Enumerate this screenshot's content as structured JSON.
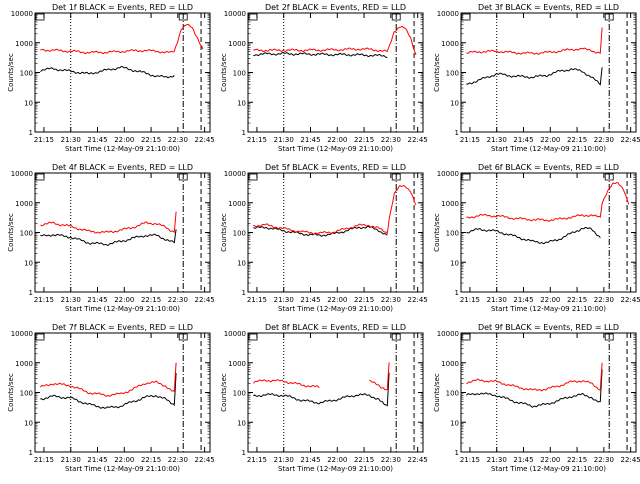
{
  "xlabel": "Start Time (12-May-09 21:10:00)",
  "ylabel": "Counts/sec",
  "x_ticks": [
    "21:15",
    "21:30",
    "21:45",
    "22:00",
    "22:15",
    "22:30",
    "22:45"
  ],
  "x_tick_values_min": [
    5,
    20,
    35,
    50,
    65,
    80,
    95
  ],
  "xlim_min": [
    0,
    98
  ],
  "y_ticks": [
    "1",
    "10",
    "100",
    "1000",
    "10000"
  ],
  "ylim": [
    1,
    10000
  ],
  "y_scale": "log",
  "colors": {
    "events": "#000000",
    "lld": "#ff0000",
    "frame": "#000000"
  },
  "vlines_min": {
    "dotted": 20,
    "dashdot": 83,
    "dashed": 93
  },
  "chart_data": [
    {
      "type": "line",
      "title": "Det 1f BLACK = Events, RED = LLD",
      "lld_gap": [],
      "x": [
        3,
        10,
        20,
        30,
        40,
        48,
        55,
        62,
        68,
        73,
        76,
        78,
        79,
        82,
        85,
        88,
        91,
        94
      ],
      "series": [
        {
          "name": "Events",
          "values": [
            120,
            135,
            110,
            90,
            120,
            150,
            120,
            95,
            75,
            70,
            75,
            80,
            null,
            null,
            null,
            null,
            null,
            null
          ]
        },
        {
          "name": "LLD",
          "values": [
            580,
            560,
            520,
            470,
            480,
            510,
            540,
            550,
            520,
            480,
            460,
            520,
            800,
            3000,
            4000,
            3200,
            1500,
            600
          ]
        }
      ]
    },
    {
      "type": "line",
      "title": "Det 2f BLACK = Events, RED = LLD",
      "lld_gap": [],
      "x": [
        3,
        10,
        20,
        30,
        40,
        48,
        55,
        62,
        68,
        73,
        76,
        78,
        79,
        82,
        85,
        88,
        91,
        94
      ],
      "series": [
        {
          "name": "Events",
          "values": [
            400,
            420,
            430,
            420,
            410,
            400,
            400,
            390,
            380,
            370,
            360,
            350,
            null,
            null,
            null,
            null,
            null,
            null
          ]
        },
        {
          "name": "LLD",
          "values": [
            560,
            560,
            560,
            560,
            570,
            580,
            600,
            620,
            600,
            560,
            520,
            500,
            700,
            2500,
            3500,
            3000,
            1500,
            400
          ]
        }
      ]
    },
    {
      "type": "line",
      "title": "Det 3f BLACK = Events, RED = LLD",
      "lld_gap": [],
      "x": [
        3,
        10,
        20,
        30,
        40,
        48,
        55,
        62,
        68,
        73,
        76,
        78,
        79,
        82,
        85,
        88,
        91,
        94
      ],
      "series": [
        {
          "name": "Events",
          "values": [
            40,
            55,
            90,
            75,
            70,
            80,
            110,
            130,
            110,
            70,
            50,
            40,
            150,
            null,
            null,
            null,
            null,
            null
          ]
        },
        {
          "name": "LLD",
          "values": [
            450,
            500,
            520,
            460,
            440,
            470,
            520,
            600,
            620,
            560,
            480,
            450,
            3000,
            null,
            null,
            null,
            null,
            null
          ]
        }
      ]
    },
    {
      "type": "line",
      "title": "Det 4f BLACK = Events, RED = LLD",
      "lld_gap": [],
      "x": [
        3,
        10,
        20,
        30,
        40,
        48,
        55,
        62,
        68,
        73,
        76,
        78,
        79,
        82,
        85,
        88,
        91,
        94
      ],
      "series": [
        {
          "name": "Events",
          "values": [
            75,
            85,
            70,
            45,
            40,
            50,
            65,
            80,
            80,
            60,
            50,
            45,
            120,
            null,
            null,
            null,
            null,
            null
          ]
        },
        {
          "name": "LLD",
          "values": [
            180,
            210,
            160,
            110,
            100,
            120,
            150,
            210,
            200,
            150,
            120,
            110,
            500,
            null,
            null,
            null,
            null,
            null
          ]
        }
      ]
    },
    {
      "type": "line",
      "title": "Det 5f BLACK = Events, RED = LLD",
      "lld_gap": [],
      "x": [
        3,
        10,
        20,
        30,
        40,
        48,
        55,
        62,
        68,
        73,
        76,
        78,
        79,
        82,
        85,
        88,
        91,
        94
      ],
      "series": [
        {
          "name": "Events",
          "values": [
            140,
            150,
            115,
            90,
            80,
            90,
            115,
            150,
            150,
            120,
            95,
            80,
            null,
            null,
            null,
            null,
            null,
            null
          ]
        },
        {
          "name": "LLD",
          "values": [
            170,
            180,
            135,
            105,
            95,
            105,
            135,
            175,
            175,
            140,
            110,
            100,
            300,
            2000,
            3500,
            3800,
            2500,
            800
          ]
        }
      ]
    },
    {
      "type": "line",
      "title": "Det 6f BLACK = Events, RED = LLD",
      "lld_gap": [],
      "x": [
        3,
        10,
        20,
        30,
        40,
        48,
        55,
        62,
        68,
        73,
        76,
        78,
        79,
        82,
        85,
        88,
        91,
        94
      ],
      "series": [
        {
          "name": "Events",
          "values": [
            100,
            130,
            110,
            75,
            50,
            45,
            60,
            95,
            140,
            130,
            90,
            70,
            null,
            null,
            null,
            null,
            null,
            null
          ]
        },
        {
          "name": "LLD",
          "values": [
            300,
            380,
            360,
            300,
            270,
            260,
            280,
            330,
            380,
            380,
            340,
            320,
            1000,
            2500,
            4200,
            4500,
            3000,
            900
          ]
        }
      ]
    },
    {
      "type": "line",
      "title": "Det 7f BLACK = Events, RED = LLD",
      "lld_gap": [],
      "x": [
        3,
        10,
        20,
        30,
        40,
        48,
        55,
        62,
        68,
        73,
        76,
        78,
        79,
        82,
        85,
        88,
        91,
        94
      ],
      "series": [
        {
          "name": "Events",
          "values": [
            60,
            75,
            65,
            40,
            30,
            35,
            50,
            70,
            80,
            60,
            45,
            40,
            500,
            null,
            null,
            null,
            null,
            null
          ]
        },
        {
          "name": "LLD",
          "values": [
            150,
            200,
            170,
            100,
            80,
            90,
            130,
            210,
            220,
            170,
            120,
            100,
            1000,
            null,
            null,
            null,
            null,
            null
          ]
        }
      ]
    },
    {
      "type": "line",
      "title": "Det 8f BLACK = Events, RED = LLD",
      "lld_gap": [
        40,
        60
      ],
      "x": [
        3,
        10,
        20,
        30,
        40,
        48,
        55,
        62,
        68,
        73,
        76,
        78,
        79,
        82,
        85,
        88,
        91,
        94
      ],
      "series": [
        {
          "name": "Events",
          "values": [
            75,
            85,
            80,
            55,
            45,
            55,
            70,
            85,
            80,
            60,
            40,
            35,
            500,
            null,
            null,
            null,
            null,
            null
          ]
        },
        {
          "name": "LLD",
          "values": [
            220,
            260,
            240,
            180,
            150,
            null,
            null,
            null,
            240,
            180,
            140,
            120,
            1000,
            null,
            null,
            null,
            null,
            null
          ]
        }
      ]
    },
    {
      "type": "line",
      "title": "Det 9f BLACK = Events, RED = LLD",
      "lld_gap": [],
      "x": [
        3,
        10,
        20,
        30,
        40,
        48,
        55,
        62,
        68,
        73,
        76,
        78,
        79,
        82,
        85,
        88,
        91,
        94
      ],
      "series": [
        {
          "name": "Events",
          "values": [
            80,
            95,
            80,
            50,
            35,
            40,
            55,
            75,
            85,
            70,
            50,
            45,
            600,
            null,
            null,
            null,
            null,
            null
          ]
        },
        {
          "name": "LLD",
          "values": [
            220,
            260,
            230,
            160,
            120,
            130,
            170,
            230,
            250,
            200,
            150,
            130,
            1000,
            null,
            null,
            null,
            null,
            null
          ]
        }
      ]
    }
  ]
}
